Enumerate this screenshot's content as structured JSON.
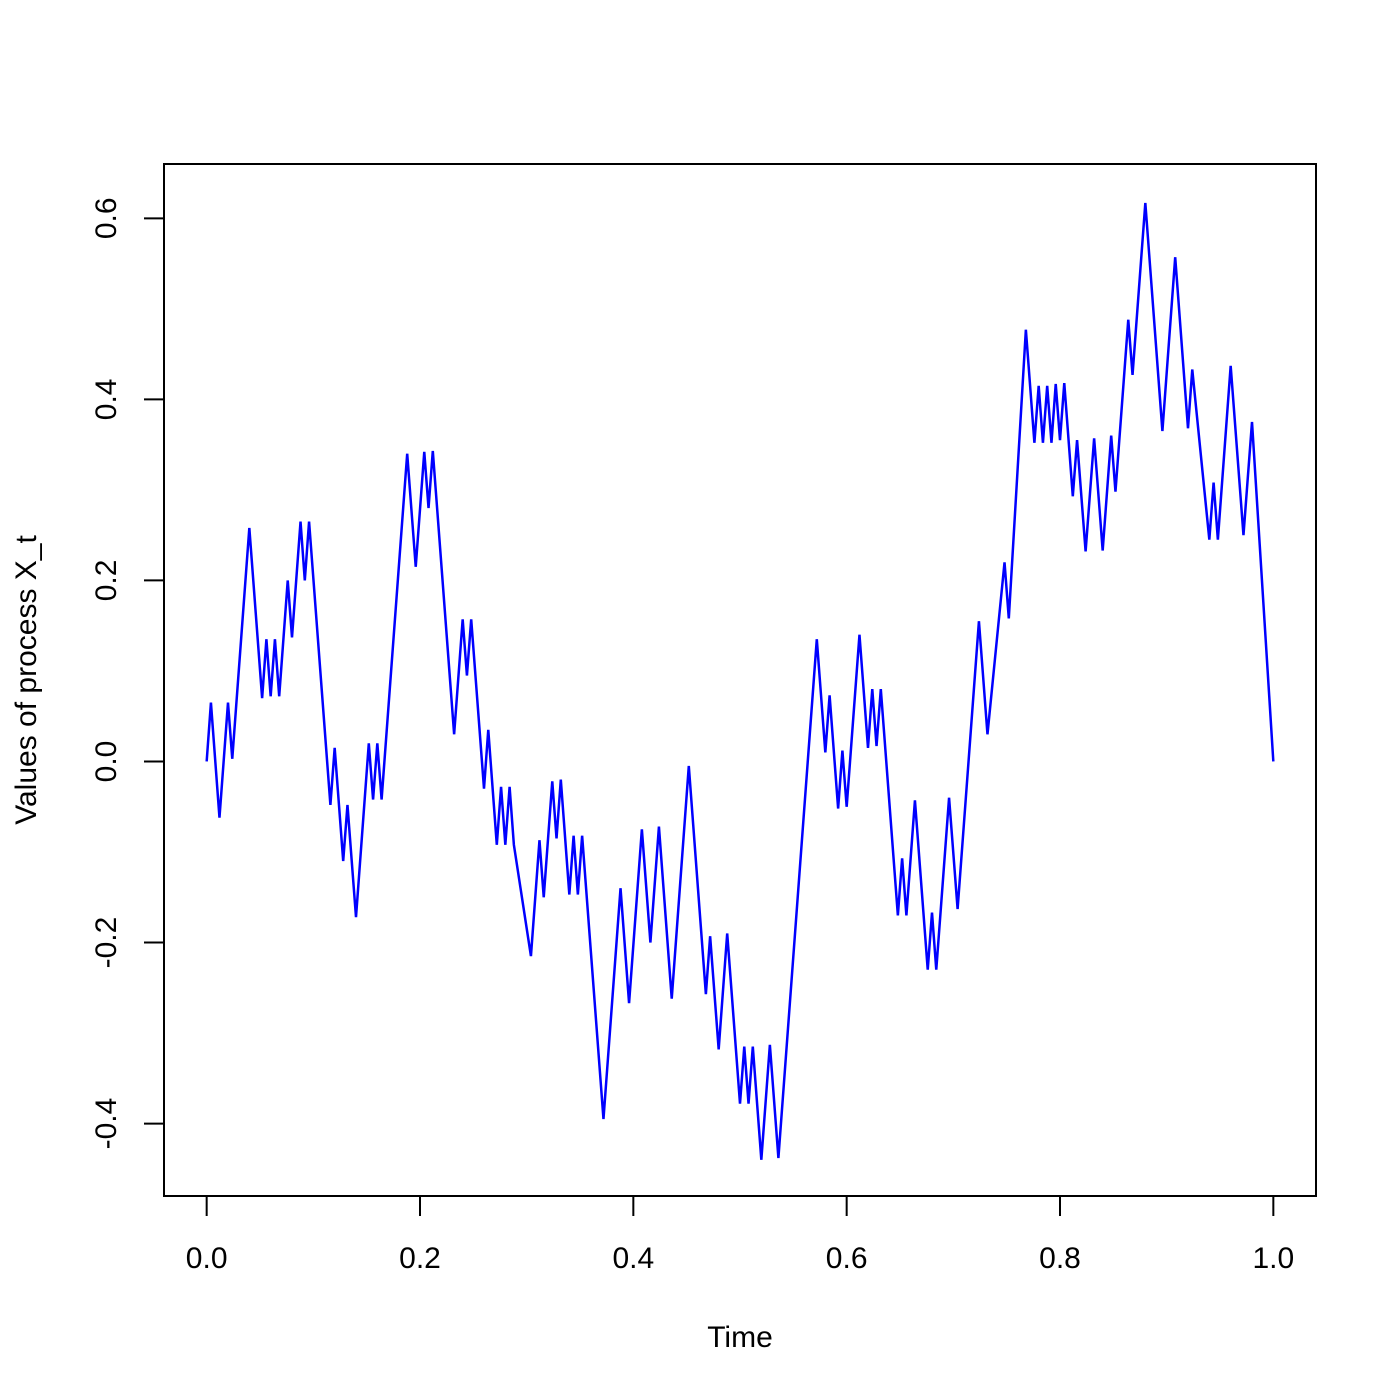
{
  "chart_data": {
    "type": "line",
    "title": "",
    "xlabel": "Time",
    "ylabel": "Values of process X_t",
    "xlim": [
      -0.04,
      1.04
    ],
    "ylim": [
      -0.48,
      0.66
    ],
    "xticks": [
      0.0,
      0.2,
      0.4,
      0.6,
      0.8,
      1.0
    ],
    "xtick_labels": [
      "0.0",
      "0.2",
      "0.4",
      "0.6",
      "0.8",
      "1.0"
    ],
    "yticks": [
      -0.4,
      -0.2,
      0.0,
      0.2,
      0.4,
      0.6
    ],
    "ytick_labels": [
      "-0.4",
      "-0.2",
      "0.0",
      "0.2",
      "0.4",
      "0.6"
    ],
    "grid": false,
    "legend": "none",
    "line_color": "#0000ff",
    "series": [
      {
        "values": [
          [
            0.0,
            0.0
          ],
          [
            0.004,
            0.065
          ],
          [
            0.012,
            -0.062
          ],
          [
            0.02,
            0.065
          ],
          [
            0.024,
            0.003
          ],
          [
            0.04,
            0.258
          ],
          [
            0.052,
            0.07
          ],
          [
            0.056,
            0.135
          ],
          [
            0.06,
            0.072
          ],
          [
            0.064,
            0.135
          ],
          [
            0.068,
            0.072
          ],
          [
            0.076,
            0.2
          ],
          [
            0.08,
            0.137
          ],
          [
            0.088,
            0.265
          ],
          [
            0.092,
            0.2
          ],
          [
            0.096,
            0.265
          ],
          [
            0.116,
            -0.048
          ],
          [
            0.12,
            0.015
          ],
          [
            0.128,
            -0.11
          ],
          [
            0.132,
            -0.048
          ],
          [
            0.14,
            -0.172
          ],
          [
            0.152,
            0.02
          ],
          [
            0.156,
            -0.042
          ],
          [
            0.16,
            0.02
          ],
          [
            0.164,
            -0.042
          ],
          [
            0.188,
            0.34
          ],
          [
            0.196,
            0.215
          ],
          [
            0.204,
            0.342
          ],
          [
            0.208,
            0.28
          ],
          [
            0.212,
            0.343
          ],
          [
            0.232,
            0.03
          ],
          [
            0.24,
            0.157
          ],
          [
            0.244,
            0.095
          ],
          [
            0.248,
            0.157
          ],
          [
            0.26,
            -0.03
          ],
          [
            0.264,
            0.035
          ],
          [
            0.272,
            -0.092
          ],
          [
            0.276,
            -0.028
          ],
          [
            0.28,
            -0.092
          ],
          [
            0.284,
            -0.028
          ],
          [
            0.288,
            -0.092
          ],
          [
            0.304,
            -0.215
          ],
          [
            0.312,
            -0.087
          ],
          [
            0.316,
            -0.15
          ],
          [
            0.324,
            -0.022
          ],
          [
            0.328,
            -0.085
          ],
          [
            0.332,
            -0.02
          ],
          [
            0.34,
            -0.147
          ],
          [
            0.344,
            -0.082
          ],
          [
            0.348,
            -0.147
          ],
          [
            0.352,
            -0.082
          ],
          [
            0.372,
            -0.395
          ],
          [
            0.388,
            -0.14
          ],
          [
            0.396,
            -0.267
          ],
          [
            0.408,
            -0.075
          ],
          [
            0.416,
            -0.2
          ],
          [
            0.424,
            -0.072
          ],
          [
            0.436,
            -0.262
          ],
          [
            0.452,
            -0.005
          ],
          [
            0.468,
            -0.257
          ],
          [
            0.472,
            -0.193
          ],
          [
            0.48,
            -0.318
          ],
          [
            0.488,
            -0.19
          ],
          [
            0.5,
            -0.378
          ],
          [
            0.504,
            -0.315
          ],
          [
            0.508,
            -0.378
          ],
          [
            0.512,
            -0.315
          ],
          [
            0.52,
            -0.44
          ],
          [
            0.528,
            -0.313
          ],
          [
            0.536,
            -0.438
          ],
          [
            0.572,
            0.135
          ],
          [
            0.58,
            0.01
          ],
          [
            0.584,
            0.073
          ],
          [
            0.592,
            -0.052
          ],
          [
            0.596,
            0.012
          ],
          [
            0.6,
            -0.05
          ],
          [
            0.612,
            0.14
          ],
          [
            0.62,
            0.015
          ],
          [
            0.624,
            0.08
          ],
          [
            0.628,
            0.017
          ],
          [
            0.632,
            0.08
          ],
          [
            0.648,
            -0.17
          ],
          [
            0.652,
            -0.107
          ],
          [
            0.656,
            -0.17
          ],
          [
            0.664,
            -0.043
          ],
          [
            0.676,
            -0.23
          ],
          [
            0.68,
            -0.167
          ],
          [
            0.684,
            -0.23
          ],
          [
            0.688,
            -0.167
          ],
          [
            0.696,
            -0.04
          ],
          [
            0.704,
            -0.163
          ],
          [
            0.724,
            0.155
          ],
          [
            0.732,
            0.03
          ],
          [
            0.748,
            0.22
          ],
          [
            0.752,
            0.158
          ],
          [
            0.768,
            0.477
          ],
          [
            0.776,
            0.352
          ],
          [
            0.78,
            0.415
          ],
          [
            0.784,
            0.352
          ],
          [
            0.788,
            0.415
          ],
          [
            0.792,
            0.352
          ],
          [
            0.796,
            0.417
          ],
          [
            0.8,
            0.355
          ],
          [
            0.804,
            0.418
          ],
          [
            0.812,
            0.293
          ],
          [
            0.816,
            0.355
          ],
          [
            0.824,
            0.232
          ],
          [
            0.832,
            0.357
          ],
          [
            0.84,
            0.233
          ],
          [
            0.848,
            0.36
          ],
          [
            0.852,
            0.298
          ],
          [
            0.864,
            0.488
          ],
          [
            0.868,
            0.427
          ],
          [
            0.88,
            0.617
          ],
          [
            0.896,
            0.365
          ],
          [
            0.908,
            0.557
          ],
          [
            0.92,
            0.368
          ],
          [
            0.924,
            0.433
          ],
          [
            0.94,
            0.245
          ],
          [
            0.944,
            0.308
          ],
          [
            0.948,
            0.245
          ],
          [
            0.96,
            0.437
          ],
          [
            0.972,
            0.25
          ],
          [
            0.98,
            0.375
          ],
          [
            1.0,
            0.0
          ]
        ]
      }
    ]
  }
}
